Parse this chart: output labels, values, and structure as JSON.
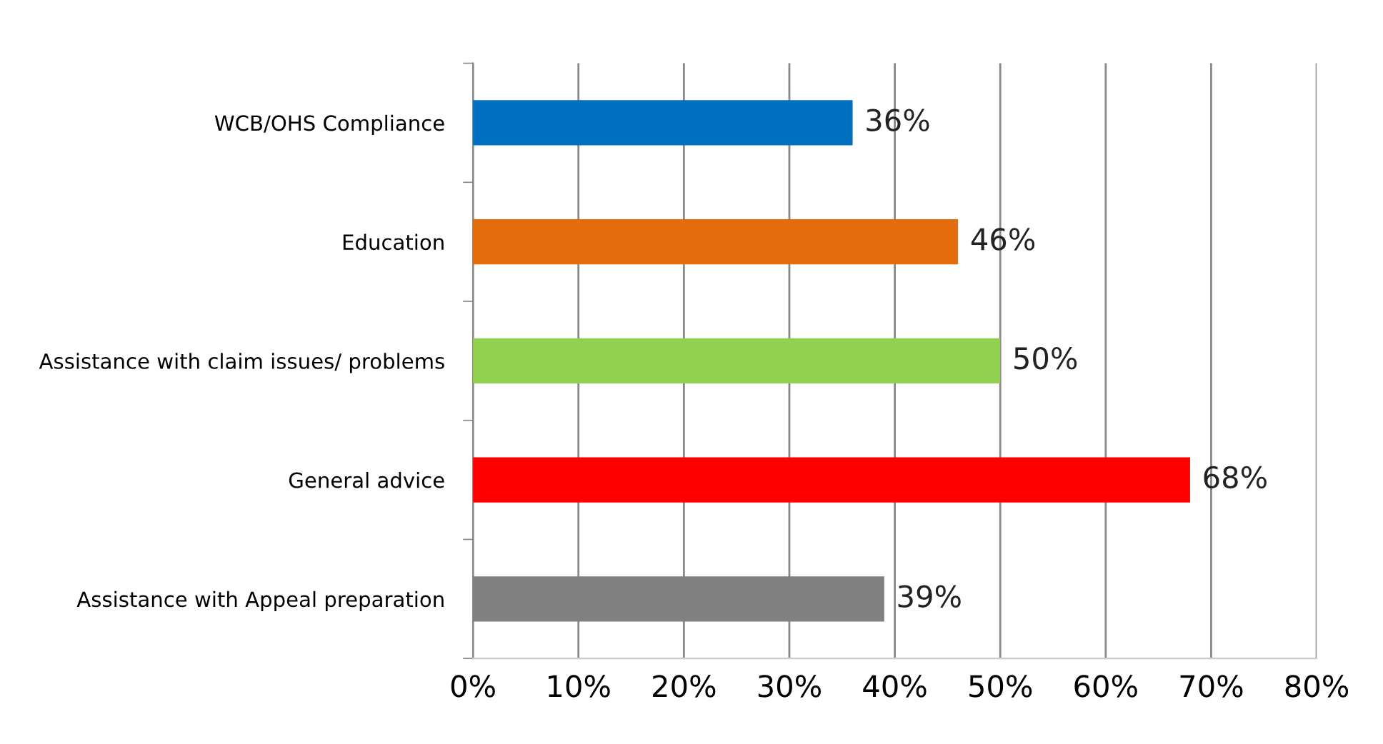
{
  "chart_data": {
    "type": "bar",
    "orientation": "horizontal",
    "categories": [
      "WCB/OHS Compliance",
      "Education",
      "Assistance with claim issues/ problems",
      "General advice",
      "Assistance with Appeal preparation"
    ],
    "values": [
      36,
      46,
      50,
      68,
      39
    ],
    "colors": [
      "#0070c0",
      "#e46c0a",
      "#92d050",
      "#ff0000",
      "#808080"
    ],
    "value_labels": [
      "36%",
      "46%",
      "50%",
      "68%",
      "39%"
    ],
    "xlim": [
      0,
      80
    ],
    "xticks": [
      {
        "value": 0,
        "label": "0%"
      },
      {
        "value": 10,
        "label": "10%"
      },
      {
        "value": 20,
        "label": "20%"
      },
      {
        "value": 30,
        "label": "30%"
      },
      {
        "value": 40,
        "label": "40%"
      },
      {
        "value": 50,
        "label": "50%"
      },
      {
        "value": 60,
        "label": "60%"
      },
      {
        "value": 70,
        "label": "70%"
      },
      {
        "value": 80,
        "label": "80%"
      }
    ],
    "grid": "x",
    "legend": false
  }
}
